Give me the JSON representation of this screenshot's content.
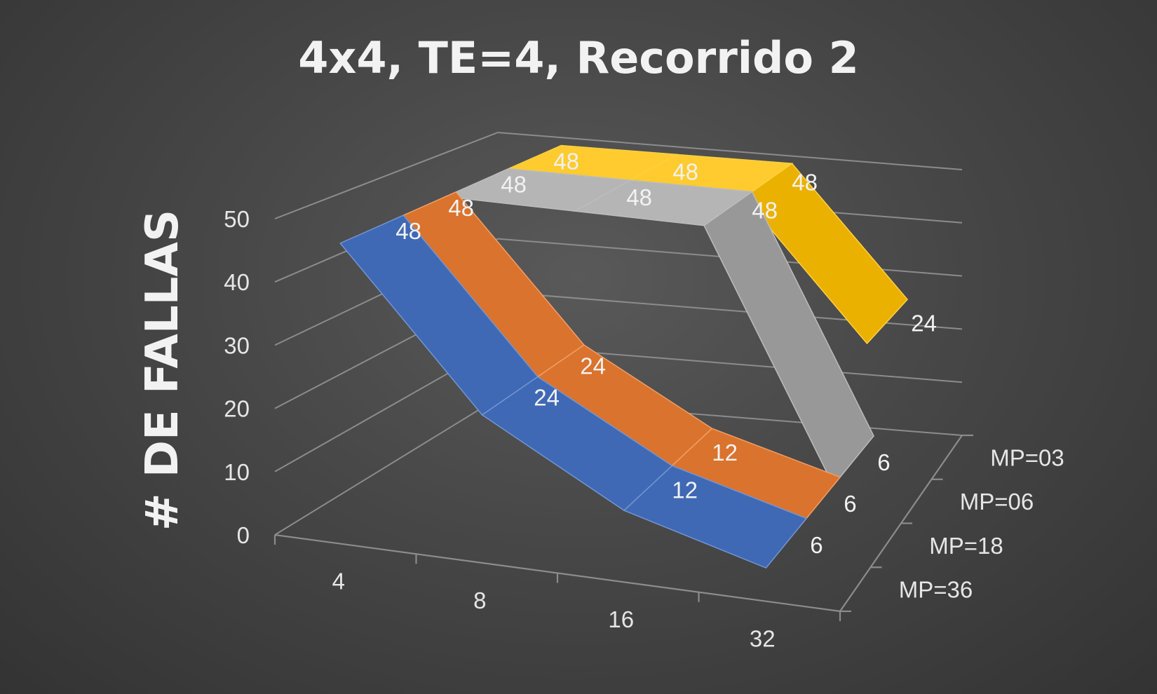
{
  "chart_data": {
    "type": "line",
    "variant": "3d-line",
    "title": "4x4, TE=4, Recorrido 2",
    "ylabel": "# DE FALLAS",
    "xlabel": "",
    "categories": [
      "4",
      "8",
      "16",
      "32"
    ],
    "ylim": [
      0,
      50
    ],
    "yticks": [
      0,
      10,
      20,
      30,
      40,
      50
    ],
    "grid": true,
    "series": [
      {
        "name": "MP=36",
        "values": [
          48,
          24,
          12,
          6
        ],
        "color": "#4472c4"
      },
      {
        "name": "MP=18",
        "values": [
          48,
          24,
          12,
          6
        ],
        "color": "#ed7d31"
      },
      {
        "name": "MP=06",
        "values": [
          48,
          48,
          48,
          6
        ],
        "color": "#a5a5a5"
      },
      {
        "name": "MP=03",
        "values": [
          48,
          48,
          48,
          24
        ],
        "color": "#ffc000"
      }
    ]
  }
}
